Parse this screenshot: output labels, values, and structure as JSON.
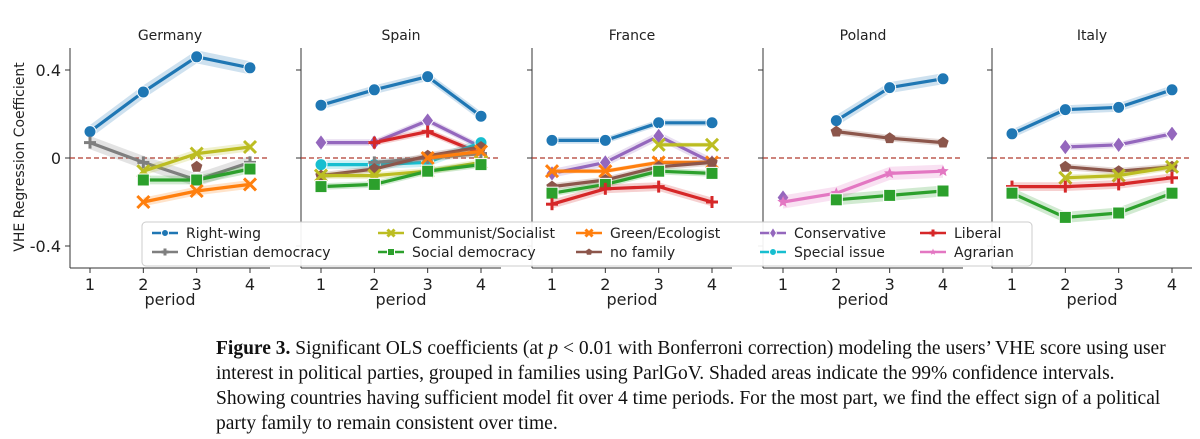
{
  "figure": {
    "ylabel": "VHE Regression Coefficient",
    "xlabel": "period",
    "ref_line_color": "#b03a2e"
  },
  "chart_data": {
    "type": "line",
    "x": [
      1,
      2,
      3,
      4
    ],
    "xlabel": "period",
    "ylabel": "VHE Regression Coefficient",
    "ylim": [
      -0.5,
      0.5
    ],
    "yticks": [
      0.4,
      0,
      -0.4
    ],
    "ytick_labels": [
      "0.4",
      "0",
      "-0.4"
    ],
    "grid": false,
    "shaded_band": "99% confidence interval",
    "families": [
      {
        "name": "Right-wing",
        "color": "#1f77b4",
        "marker": "circle"
      },
      {
        "name": "Christian democracy",
        "color": "#7f7f7f",
        "marker": "plus"
      },
      {
        "name": "Communist/Socialist",
        "color": "#bcbd22",
        "marker": "x"
      },
      {
        "name": "Social democracy",
        "color": "#2ca02c",
        "marker": "square"
      },
      {
        "name": "Green/Ecologist",
        "color": "#ff7f0e",
        "marker": "x"
      },
      {
        "name": "no family",
        "color": "#8c564b",
        "marker": "pentagon"
      },
      {
        "name": "Conservative",
        "color": "#9467bd",
        "marker": "diamond"
      },
      {
        "name": "Special issue",
        "color": "#17becf",
        "marker": "circle"
      },
      {
        "name": "Liberal",
        "color": "#d62728",
        "marker": "plus"
      },
      {
        "name": "Agrarian",
        "color": "#e377c2",
        "marker": "star"
      }
    ],
    "legend": {
      "placement": "lower center",
      "ncol": 5
    },
    "panels": [
      {
        "title": "Germany",
        "series": [
          {
            "family": "Right-wing",
            "values": [
              0.12,
              0.3,
              0.46,
              0.41
            ],
            "ci": 0.03
          },
          {
            "family": "Christian democracy",
            "values": [
              0.07,
              -0.02,
              -0.1,
              -0.02
            ],
            "ci": 0.03
          },
          {
            "family": "Communist/Socialist",
            "values": [
              null,
              -0.06,
              0.02,
              0.05
            ],
            "ci": 0.02
          },
          {
            "family": "Social democracy",
            "values": [
              null,
              -0.1,
              -0.1,
              -0.05
            ],
            "ci": 0.02
          },
          {
            "family": "Green/Ecologist",
            "values": [
              null,
              -0.2,
              -0.15,
              -0.12
            ],
            "ci": 0.02
          },
          {
            "family": "no family",
            "values": [
              null,
              null,
              -0.04,
              null
            ],
            "ci": 0.0
          }
        ]
      },
      {
        "title": "Spain",
        "series": [
          {
            "family": "Right-wing",
            "values": [
              0.24,
              0.31,
              0.37,
              0.19
            ],
            "ci": 0.02
          },
          {
            "family": "Conservative",
            "values": [
              0.07,
              0.07,
              0.17,
              0.05
            ],
            "ci": 0.015
          },
          {
            "family": "Liberal",
            "values": [
              null,
              0.07,
              0.12,
              0.02
            ],
            "ci": 0.015
          },
          {
            "family": "Special issue",
            "values": [
              -0.03,
              -0.03,
              -0.02,
              0.07
            ],
            "ci": 0.02
          },
          {
            "family": "Christian democracy",
            "values": [
              null,
              -0.02,
              0.0,
              0.02
            ],
            "ci": 0.015
          },
          {
            "family": "no family",
            "values": [
              -0.08,
              -0.05,
              0.01,
              0.05
            ],
            "ci": 0.015
          },
          {
            "family": "Green/Ecologist",
            "values": [
              null,
              null,
              0.0,
              0.03
            ],
            "ci": 0.015
          },
          {
            "family": "Communist/Socialist",
            "values": [
              -0.08,
              -0.08,
              -0.06,
              -0.02
            ],
            "ci": 0.015
          },
          {
            "family": "Social democracy",
            "values": [
              -0.13,
              -0.12,
              -0.06,
              -0.03
            ],
            "ci": 0.015
          }
        ]
      },
      {
        "title": "France",
        "series": [
          {
            "family": "Right-wing",
            "values": [
              0.08,
              0.08,
              0.16,
              0.16
            ],
            "ci": 0.015
          },
          {
            "family": "Conservative",
            "values": [
              -0.07,
              -0.02,
              0.1,
              -0.02
            ],
            "ci": 0.02
          },
          {
            "family": "Communist/Socialist",
            "values": [
              null,
              null,
              0.06,
              0.06
            ],
            "ci": 0.01
          },
          {
            "family": "Green/Ecologist",
            "values": [
              -0.06,
              -0.06,
              -0.02,
              -0.02
            ],
            "ci": 0.01
          },
          {
            "family": "no family",
            "values": [
              -0.13,
              -0.1,
              -0.04,
              -0.02
            ],
            "ci": 0.015
          },
          {
            "family": "Social democracy",
            "values": [
              -0.16,
              -0.12,
              -0.06,
              -0.07
            ],
            "ci": 0.015
          },
          {
            "family": "Liberal",
            "values": [
              -0.21,
              -0.14,
              -0.13,
              -0.2
            ],
            "ci": 0.02
          }
        ]
      },
      {
        "title": "Poland",
        "series": [
          {
            "family": "Right-wing",
            "values": [
              null,
              0.17,
              0.32,
              0.36
            ],
            "ci": 0.025
          },
          {
            "family": "no family",
            "values": [
              null,
              0.12,
              0.09,
              0.07
            ],
            "ci": 0.015
          },
          {
            "family": "Conservative",
            "values": [
              -0.18,
              null,
              null,
              null
            ],
            "ci": 0.0
          },
          {
            "family": "Agrarian",
            "values": [
              -0.2,
              -0.16,
              -0.07,
              -0.06
            ],
            "ci": 0.03
          },
          {
            "family": "Social democracy",
            "values": [
              null,
              -0.19,
              -0.17,
              -0.15
            ],
            "ci": 0.025
          }
        ]
      },
      {
        "title": "Italy",
        "series": [
          {
            "family": "Right-wing",
            "values": [
              0.11,
              0.22,
              0.23,
              0.31
            ],
            "ci": 0.02
          },
          {
            "family": "Conservative",
            "values": [
              null,
              0.05,
              0.06,
              0.11
            ],
            "ci": 0.015
          },
          {
            "family": "no family",
            "values": [
              null,
              -0.04,
              -0.06,
              -0.04
            ],
            "ci": 0.015
          },
          {
            "family": "Communist/Socialist",
            "values": [
              null,
              -0.09,
              -0.08,
              -0.04
            ],
            "ci": 0.015
          },
          {
            "family": "Liberal",
            "values": [
              -0.13,
              -0.13,
              -0.12,
              -0.09
            ],
            "ci": 0.02
          },
          {
            "family": "Social democracy",
            "values": [
              -0.16,
              -0.27,
              -0.25,
              -0.16
            ],
            "ci": 0.025
          }
        ]
      }
    ]
  },
  "caption": {
    "label": "Figure 3.",
    "before_p": "Significant OLS coefficients (at",
    "p_var": "p",
    "after_p": "< 0.01 with Bonferroni correction) modeling the users’ VHE score using user interest in political parties, grouped in families using ParlGoV. Shaded areas indicate the 99% confidence intervals. Showing countries having sufficient model fit over 4 time periods. For the most part, we find the effect sign of a political party family to remain consistent over time."
  }
}
